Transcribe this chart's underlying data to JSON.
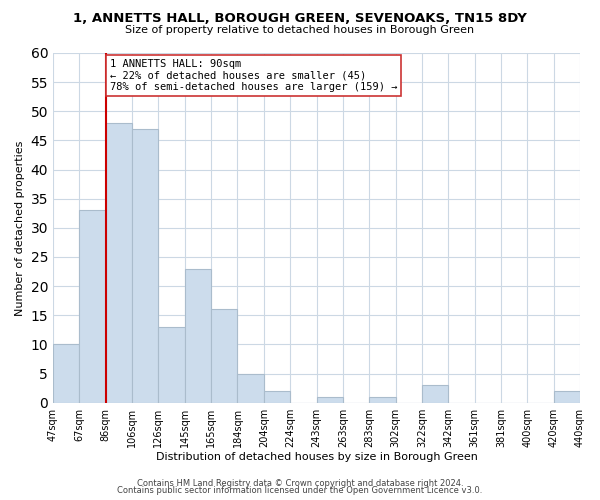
{
  "title": "1, ANNETTS HALL, BOROUGH GREEN, SEVENOAKS, TN15 8DY",
  "subtitle": "Size of property relative to detached houses in Borough Green",
  "xlabel": "Distribution of detached houses by size in Borough Green",
  "ylabel": "Number of detached properties",
  "bar_color": "#ccdcec",
  "bar_edge_color": "#aabccc",
  "tick_labels": [
    "47sqm",
    "67sqm",
    "86sqm",
    "106sqm",
    "126sqm",
    "145sqm",
    "165sqm",
    "184sqm",
    "204sqm",
    "224sqm",
    "243sqm",
    "263sqm",
    "283sqm",
    "302sqm",
    "322sqm",
    "342sqm",
    "361sqm",
    "381sqm",
    "400sqm",
    "420sqm",
    "440sqm"
  ],
  "bar_heights": [
    10,
    33,
    48,
    47,
    13,
    23,
    16,
    5,
    2,
    0,
    1,
    0,
    1,
    0,
    3,
    0,
    0,
    0,
    0,
    2
  ],
  "vline_index": 2,
  "vline_color": "#cc0000",
  "annotation_text": "1 ANNETTS HALL: 90sqm\n← 22% of detached houses are smaller (45)\n78% of semi-detached houses are larger (159) →",
  "ylim": [
    0,
    60
  ],
  "yticks": [
    0,
    5,
    10,
    15,
    20,
    25,
    30,
    35,
    40,
    45,
    50,
    55,
    60
  ],
  "footer_line1": "Contains HM Land Registry data © Crown copyright and database right 2024.",
  "footer_line2": "Contains public sector information licensed under the Open Government Licence v3.0.",
  "background_color": "#ffffff",
  "grid_color": "#ccd8e4",
  "title_fontsize": 9.5,
  "subtitle_fontsize": 8,
  "axis_fontsize": 8,
  "tick_fontsize": 7,
  "footer_fontsize": 6
}
